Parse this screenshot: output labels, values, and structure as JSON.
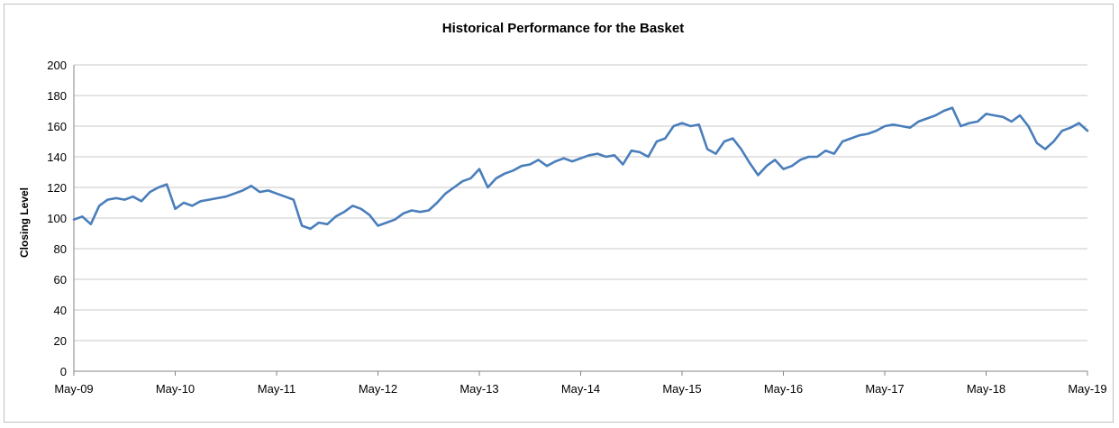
{
  "colors": {
    "series": "#4a7ebb",
    "grid": "#c8c8c8",
    "axis": "#868686"
  },
  "chart_data": {
    "type": "line",
    "title": "Historical Performance for the Basket",
    "xlabel": "",
    "ylabel": "Closing Level",
    "ylim": [
      0,
      200
    ],
    "yticks": [
      0,
      20,
      40,
      60,
      80,
      100,
      120,
      140,
      160,
      180,
      200
    ],
    "xlim": [
      "2009-05",
      "2019-05"
    ],
    "xticks": [
      "May-09",
      "May-10",
      "May-11",
      "May-12",
      "May-13",
      "May-14",
      "May-15",
      "May-16",
      "May-17",
      "May-18",
      "May-19"
    ],
    "grid": "horizontal",
    "legend": "none",
    "series": [
      {
        "name": "",
        "x": [
          "2009-05",
          "2009-06",
          "2009-07",
          "2009-08",
          "2009-09",
          "2009-10",
          "2009-11",
          "2009-12",
          "2010-01",
          "2010-02",
          "2010-03",
          "2010-04",
          "2010-05",
          "2010-06",
          "2010-07",
          "2010-08",
          "2010-09",
          "2010-10",
          "2010-11",
          "2010-12",
          "2011-01",
          "2011-02",
          "2011-03",
          "2011-04",
          "2011-05",
          "2011-06",
          "2011-07",
          "2011-08",
          "2011-09",
          "2011-10",
          "2011-11",
          "2011-12",
          "2012-01",
          "2012-02",
          "2012-03",
          "2012-04",
          "2012-05",
          "2012-06",
          "2012-07",
          "2012-08",
          "2012-09",
          "2012-10",
          "2012-11",
          "2012-12",
          "2013-01",
          "2013-02",
          "2013-03",
          "2013-04",
          "2013-05",
          "2013-06",
          "2013-07",
          "2013-08",
          "2013-09",
          "2013-10",
          "2013-11",
          "2013-12",
          "2014-01",
          "2014-02",
          "2014-03",
          "2014-04",
          "2014-05",
          "2014-06",
          "2014-07",
          "2014-08",
          "2014-09",
          "2014-10",
          "2014-11",
          "2014-12",
          "2015-01",
          "2015-02",
          "2015-03",
          "2015-04",
          "2015-05",
          "2015-06",
          "2015-07",
          "2015-08",
          "2015-09",
          "2015-10",
          "2015-11",
          "2015-12",
          "2016-01",
          "2016-02",
          "2016-03",
          "2016-04",
          "2016-05",
          "2016-06",
          "2016-07",
          "2016-08",
          "2016-09",
          "2016-10",
          "2016-11",
          "2016-12",
          "2017-01",
          "2017-02",
          "2017-03",
          "2017-04",
          "2017-05",
          "2017-06",
          "2017-07",
          "2017-08",
          "2017-09",
          "2017-10",
          "2017-11",
          "2017-12",
          "2018-01",
          "2018-02",
          "2018-03",
          "2018-04",
          "2018-05",
          "2018-06",
          "2018-07",
          "2018-08",
          "2018-09",
          "2018-10",
          "2018-11",
          "2018-12",
          "2019-01",
          "2019-02",
          "2019-03",
          "2019-04",
          "2019-05"
        ],
        "values": [
          99,
          101,
          96,
          108,
          112,
          113,
          112,
          114,
          111,
          117,
          120,
          122,
          106,
          110,
          108,
          111,
          112,
          113,
          114,
          116,
          118,
          121,
          117,
          118,
          116,
          114,
          112,
          95,
          93,
          97,
          96,
          101,
          104,
          108,
          106,
          102,
          95,
          97,
          99,
          103,
          105,
          104,
          105,
          110,
          116,
          120,
          124,
          126,
          132,
          120,
          126,
          129,
          131,
          134,
          135,
          138,
          134,
          137,
          139,
          137,
          139,
          141,
          142,
          140,
          141,
          135,
          144,
          143,
          140,
          150,
          152,
          160,
          162,
          160,
          161,
          145,
          142,
          150,
          152,
          145,
          136,
          128,
          134,
          138,
          132,
          134,
          138,
          140,
          140,
          144,
          142,
          150,
          152,
          154,
          155,
          157,
          160,
          161,
          160,
          159,
          163,
          165,
          167,
          170,
          172,
          160,
          162,
          163,
          168,
          167,
          166,
          163,
          167,
          160,
          149,
          145,
          150,
          157,
          159,
          162,
          157
        ]
      }
    ]
  }
}
